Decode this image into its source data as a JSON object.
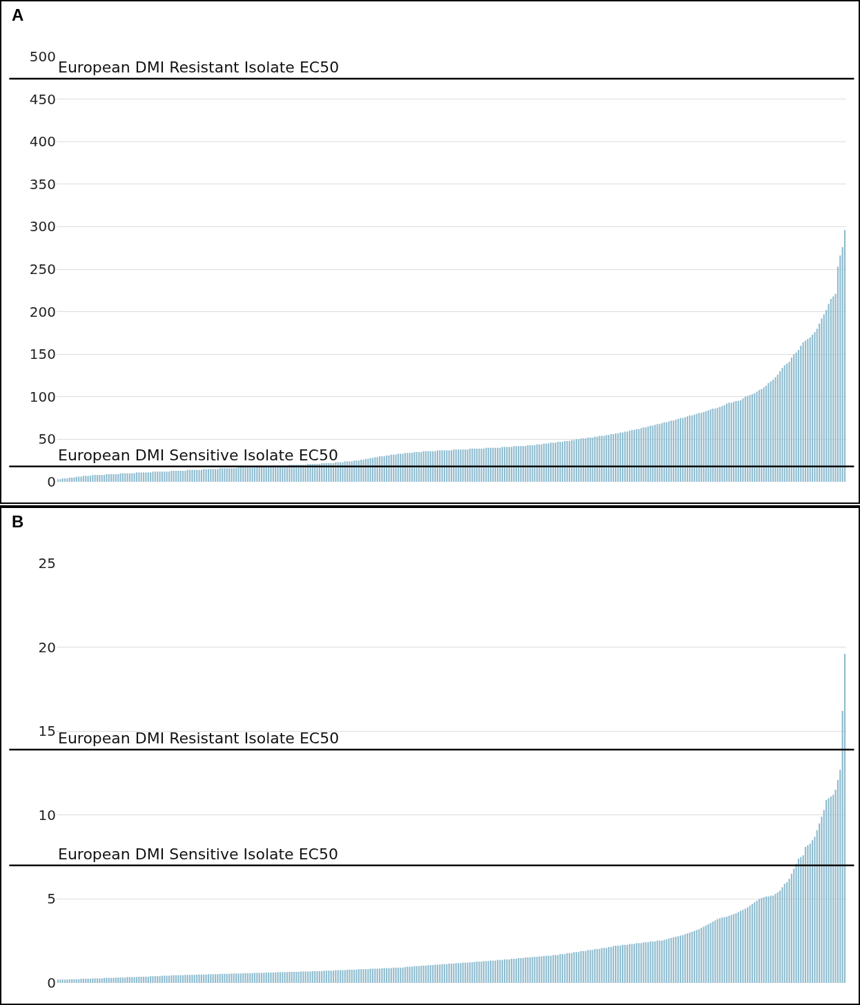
{
  "chart_data": [
    {
      "type": "bar",
      "title": "A",
      "categories": [
        null,
        null,
        null,
        null,
        null,
        null,
        null,
        null,
        null,
        null,
        null,
        null,
        null,
        null,
        null,
        null,
        null,
        null,
        null,
        null,
        null,
        null,
        null,
        null,
        null,
        null,
        null,
        null,
        null,
        null,
        null,
        null,
        null,
        null,
        null,
        null,
        null,
        null,
        null,
        null,
        null,
        null,
        null,
        null,
        null,
        null,
        null,
        null,
        null,
        null,
        null,
        null,
        null,
        null,
        null,
        null,
        null,
        null,
        null,
        null,
        null,
        null,
        null,
        null,
        null,
        null,
        null,
        null,
        null,
        null,
        null,
        null,
        null,
        null,
        null,
        null,
        null,
        null,
        null,
        null,
        null,
        null,
        null,
        null,
        null,
        null,
        null,
        null,
        null,
        null,
        null,
        null,
        null,
        null,
        null,
        null,
        null,
        null,
        null,
        null,
        null,
        null,
        null,
        null,
        null,
        null,
        null,
        null,
        null,
        null,
        null,
        null,
        null,
        null,
        null,
        null,
        null,
        null,
        null,
        null,
        null,
        null,
        null,
        null,
        null,
        null,
        null,
        null,
        null,
        null,
        null,
        null,
        null,
        null,
        null,
        null,
        null,
        null,
        null,
        null,
        null,
        null,
        null,
        null,
        null,
        null,
        null,
        null,
        null,
        null,
        null,
        null,
        null,
        null,
        null,
        null,
        null,
        null,
        null,
        null,
        null,
        null,
        null,
        null,
        null,
        null,
        null,
        null,
        null,
        null,
        null,
        null,
        null,
        null,
        null,
        null,
        null,
        null,
        null,
        null,
        null,
        null,
        null,
        null,
        null,
        null,
        null,
        null,
        null,
        null,
        null,
        null,
        null,
        null,
        null,
        null,
        null,
        null,
        null,
        null,
        null,
        null,
        null,
        null,
        null,
        null,
        null,
        null,
        null,
        null,
        null,
        null,
        null,
        null,
        null,
        null,
        null,
        null,
        null,
        null,
        null,
        null,
        null,
        null,
        null,
        null,
        null,
        null,
        null,
        null,
        null,
        null,
        null,
        null,
        null,
        null,
        null,
        null,
        null,
        null,
        null,
        null,
        null,
        null,
        null,
        null,
        null,
        null,
        null,
        null,
        null,
        null,
        null,
        null,
        null,
        null,
        null,
        null,
        null,
        null,
        null,
        null,
        null,
        null,
        null,
        null,
        null,
        null,
        null,
        null,
        null,
        null,
        null,
        null,
        null,
        null,
        null,
        null,
        null,
        null,
        null,
        null,
        null,
        null,
        null,
        null,
        null,
        null,
        null,
        null,
        null,
        null,
        null,
        null,
        null,
        null,
        null,
        null,
        null,
        null,
        null,
        null,
        null,
        null,
        null,
        null,
        null,
        null,
        null,
        null,
        null,
        null,
        null,
        null,
        null,
        null,
        null,
        null,
        null,
        null,
        null,
        null,
        null,
        null,
        null,
        null,
        null,
        null,
        null,
        null,
        null,
        null,
        null,
        null,
        null,
        null,
        null,
        null,
        null,
        null,
        null
      ],
      "values": [
        3,
        3,
        4,
        4,
        4,
        5,
        5,
        5,
        6,
        6,
        6,
        7,
        7,
        7,
        7,
        8,
        8,
        8,
        8,
        8,
        8,
        9,
        9,
        9,
        9,
        9,
        9,
        10,
        10,
        10,
        10,
        10,
        10,
        10,
        11,
        11,
        11,
        11,
        11,
        11,
        11,
        12,
        12,
        12,
        12,
        12,
        12,
        12,
        12,
        13,
        13,
        13,
        13,
        13,
        13,
        13,
        14,
        14,
        14,
        14,
        14,
        14,
        14,
        15,
        15,
        15,
        15,
        15,
        15,
        15,
        16,
        16,
        16,
        16,
        16,
        16,
        16,
        16,
        17,
        17,
        17,
        17,
        17,
        17,
        17,
        18,
        18,
        18,
        18,
        18,
        18,
        18,
        18,
        19,
        19,
        19,
        19,
        19,
        19,
        19,
        20,
        20,
        20,
        20,
        20,
        20,
        20,
        20,
        21,
        21,
        21,
        21,
        21,
        21,
        22,
        22,
        22,
        22,
        22,
        22,
        23,
        23,
        23,
        23,
        24,
        24,
        24,
        24,
        25,
        25,
        25,
        26,
        26,
        27,
        27,
        28,
        28,
        29,
        29,
        30,
        30,
        30,
        31,
        31,
        32,
        32,
        32,
        33,
        33,
        33,
        34,
        34,
        34,
        34,
        35,
        35,
        35,
        35,
        36,
        36,
        36,
        36,
        36,
        36,
        37,
        37,
        37,
        37,
        37,
        37,
        37,
        38,
        38,
        38,
        38,
        38,
        38,
        38,
        39,
        39,
        39,
        39,
        39,
        39,
        39,
        40,
        40,
        40,
        40,
        40,
        40,
        40,
        41,
        41,
        41,
        41,
        41,
        42,
        42,
        42,
        42,
        42,
        42,
        43,
        43,
        43,
        43,
        44,
        44,
        44,
        45,
        45,
        45,
        46,
        46,
        46,
        47,
        47,
        47,
        48,
        48,
        48,
        49,
        49,
        50,
        50,
        51,
        51,
        51,
        52,
        52,
        52,
        53,
        53,
        54,
        54,
        54,
        55,
        55,
        56,
        56,
        57,
        57,
        58,
        58,
        59,
        59,
        60,
        61,
        61,
        62,
        62,
        63,
        64,
        64,
        65,
        66,
        66,
        67,
        68,
        68,
        69,
        70,
        70,
        71,
        72,
        72,
        73,
        74,
        75,
        75,
        76,
        77,
        78,
        78,
        79,
        80,
        81,
        81,
        82,
        83,
        84,
        85,
        86,
        86,
        87,
        88,
        89,
        90,
        92,
        93,
        93,
        94,
        95,
        95,
        96,
        98,
        100,
        101,
        102,
        103,
        104,
        106,
        108,
        109,
        111,
        113,
        116,
        118,
        120,
        123,
        126,
        130,
        134,
        137,
        139,
        141,
        146,
        150,
        152,
        155,
        160,
        164,
        166,
        168,
        170,
        173,
        176,
        180,
        186,
        192,
        197,
        202,
        209,
        215,
        218,
        221,
        253,
        266,
        276,
        296
      ],
      "color": "#8fbccf",
      "ylim": [
        0,
        500
      ],
      "yticks": [
        0,
        50,
        100,
        150,
        200,
        250,
        300,
        350,
        400,
        450,
        500
      ],
      "grid": "y",
      "ref_lines": [
        {
          "axis": "y",
          "value": 474,
          "label": "European DMI Resistant Isolate EC50",
          "color": "#000000"
        },
        {
          "axis": "y",
          "value": 18,
          "label": "European DMI Sensitive Isolate EC50",
          "color": "#000000"
        }
      ]
    },
    {
      "type": "bar",
      "title": "B",
      "categories": [
        null,
        null,
        null,
        null,
        null,
        null,
        null,
        null,
        null,
        null,
        null,
        null,
        null,
        null,
        null,
        null,
        null,
        null,
        null,
        null,
        null,
        null,
        null,
        null,
        null,
        null,
        null,
        null,
        null,
        null,
        null,
        null,
        null,
        null,
        null,
        null,
        null,
        null,
        null,
        null,
        null,
        null,
        null,
        null,
        null,
        null,
        null,
        null,
        null,
        null,
        null,
        null,
        null,
        null,
        null,
        null,
        null,
        null,
        null,
        null,
        null,
        null,
        null,
        null,
        null,
        null,
        null,
        null,
        null,
        null,
        null,
        null,
        null,
        null,
        null,
        null,
        null,
        null,
        null,
        null,
        null,
        null,
        null,
        null,
        null,
        null,
        null,
        null,
        null,
        null,
        null,
        null,
        null,
        null,
        null,
        null,
        null,
        null,
        null,
        null,
        null,
        null,
        null,
        null,
        null,
        null,
        null,
        null,
        null,
        null,
        null,
        null,
        null,
        null,
        null,
        null,
        null,
        null,
        null,
        null,
        null,
        null,
        null,
        null,
        null,
        null,
        null,
        null,
        null,
        null,
        null,
        null,
        null,
        null,
        null,
        null,
        null,
        null,
        null,
        null,
        null,
        null,
        null,
        null,
        null,
        null,
        null,
        null,
        null,
        null,
        null,
        null,
        null,
        null,
        null,
        null,
        null,
        null,
        null,
        null,
        null,
        null,
        null,
        null,
        null,
        null,
        null,
        null,
        null,
        null,
        null,
        null,
        null,
        null,
        null,
        null,
        null,
        null,
        null,
        null,
        null,
        null,
        null,
        null,
        null,
        null,
        null,
        null,
        null,
        null,
        null,
        null,
        null,
        null,
        null,
        null,
        null,
        null,
        null,
        null,
        null,
        null,
        null,
        null,
        null,
        null,
        null,
        null,
        null,
        null,
        null,
        null,
        null,
        null,
        null,
        null,
        null,
        null,
        null,
        null,
        null,
        null,
        null,
        null,
        null,
        null,
        null,
        null,
        null,
        null,
        null,
        null,
        null,
        null,
        null,
        null,
        null,
        null,
        null,
        null,
        null,
        null,
        null,
        null,
        null,
        null,
        null,
        null,
        null,
        null,
        null,
        null,
        null,
        null,
        null,
        null,
        null,
        null,
        null,
        null,
        null,
        null,
        null,
        null,
        null,
        null,
        null,
        null,
        null,
        null,
        null,
        null,
        null,
        null,
        null,
        null,
        null,
        null,
        null,
        null,
        null,
        null,
        null,
        null,
        null,
        null,
        null,
        null,
        null,
        null,
        null,
        null,
        null,
        null,
        null,
        null,
        null,
        null,
        null,
        null,
        null,
        null,
        null,
        null,
        null,
        null,
        null,
        null,
        null,
        null,
        null,
        null,
        null,
        null,
        null,
        null,
        null,
        null,
        null,
        null,
        null,
        null,
        null,
        null,
        null,
        null,
        null,
        null,
        null,
        null,
        null,
        null,
        null,
        null,
        null,
        null,
        null,
        null,
        null,
        null,
        null
      ],
      "values": [
        0.2,
        0.2,
        0.2,
        0.2,
        0.2,
        0.22,
        0.22,
        0.22,
        0.22,
        0.22,
        0.25,
        0.25,
        0.25,
        0.25,
        0.25,
        0.27,
        0.27,
        0.27,
        0.27,
        0.27,
        0.3,
        0.3,
        0.3,
        0.3,
        0.3,
        0.32,
        0.32,
        0.32,
        0.32,
        0.32,
        0.35,
        0.35,
        0.35,
        0.35,
        0.35,
        0.37,
        0.37,
        0.37,
        0.37,
        0.37,
        0.4,
        0.4,
        0.4,
        0.4,
        0.4,
        0.43,
        0.43,
        0.43,
        0.43,
        0.45,
        0.46,
        0.46,
        0.46,
        0.46,
        0.46,
        0.48,
        0.48,
        0.48,
        0.48,
        0.48,
        0.5,
        0.5,
        0.5,
        0.5,
        0.5,
        0.52,
        0.52,
        0.52,
        0.52,
        0.52,
        0.54,
        0.54,
        0.54,
        0.54,
        0.54,
        0.56,
        0.56,
        0.56,
        0.56,
        0.56,
        0.58,
        0.58,
        0.58,
        0.58,
        0.58,
        0.6,
        0.6,
        0.6,
        0.6,
        0.6,
        0.62,
        0.62,
        0.62,
        0.62,
        0.62,
        0.64,
        0.64,
        0.64,
        0.64,
        0.65,
        0.66,
        0.66,
        0.66,
        0.66,
        0.66,
        0.68,
        0.68,
        0.68,
        0.68,
        0.68,
        0.7,
        0.7,
        0.7,
        0.7,
        0.7,
        0.73,
        0.73,
        0.73,
        0.73,
        0.73,
        0.76,
        0.76,
        0.76,
        0.76,
        0.76,
        0.79,
        0.79,
        0.79,
        0.79,
        0.79,
        0.82,
        0.82,
        0.82,
        0.82,
        0.82,
        0.85,
        0.85,
        0.85,
        0.85,
        0.85,
        0.88,
        0.88,
        0.88,
        0.88,
        0.88,
        0.91,
        0.91,
        0.91,
        0.91,
        0.91,
        0.95,
        0.97,
        0.97,
        0.97,
        1.0,
        1.0,
        1.0,
        1.03,
        1.03,
        1.03,
        1.06,
        1.06,
        1.06,
        1.09,
        1.09,
        1.09,
        1.12,
        1.12,
        1.12,
        1.15,
        1.15,
        1.15,
        1.18,
        1.18,
        1.18,
        1.21,
        1.21,
        1.21,
        1.23,
        1.23,
        1.25,
        1.27,
        1.27,
        1.27,
        1.3,
        1.3,
        1.3,
        1.33,
        1.33,
        1.33,
        1.37,
        1.37,
        1.37,
        1.4,
        1.4,
        1.4,
        1.44,
        1.44,
        1.44,
        1.48,
        1.48,
        1.48,
        1.52,
        1.52,
        1.52,
        1.55,
        1.55,
        1.55,
        1.58,
        1.58,
        1.6,
        1.62,
        1.62,
        1.62,
        1.66,
        1.66,
        1.66,
        1.72,
        1.72,
        1.72,
        1.78,
        1.78,
        1.78,
        1.84,
        1.84,
        1.84,
        1.9,
        1.9,
        1.9,
        1.96,
        1.96,
        1.96,
        2.02,
        2.02,
        2.02,
        2.08,
        2.08,
        2.08,
        2.14,
        2.14,
        2.2,
        2.22,
        2.22,
        2.22,
        2.27,
        2.27,
        2.27,
        2.32,
        2.32,
        2.32,
        2.37,
        2.37,
        2.37,
        2.42,
        2.42,
        2.42,
        2.47,
        2.47,
        2.47,
        2.52,
        2.52,
        2.52,
        2.57,
        2.6,
        2.65,
        2.68,
        2.72,
        2.75,
        2.78,
        2.82,
        2.85,
        2.9,
        2.95,
        3.0,
        3.05,
        3.1,
        3.15,
        3.2,
        3.28,
        3.35,
        3.42,
        3.5,
        3.57,
        3.65,
        3.72,
        3.8,
        3.85,
        3.9,
        3.92,
        3.95,
        4.0,
        4.05,
        4.1,
        4.15,
        4.22,
        4.3,
        4.35,
        4.42,
        4.5,
        4.6,
        4.7,
        4.8,
        4.9,
        5.0,
        5.05,
        5.1,
        5.15,
        5.15,
        5.2,
        5.2,
        5.3,
        5.4,
        5.5,
        5.7,
        5.9,
        6.0,
        6.2,
        6.5,
        6.8,
        7.1,
        7.4,
        7.5,
        7.6,
        8.1,
        8.2,
        8.3,
        8.5,
        8.7,
        9.1,
        9.5,
        9.9,
        10.3,
        10.9,
        11.0,
        11.1,
        11.2,
        11.5,
        12.1,
        12.7,
        16.2,
        19.6
      ],
      "color": "#8fbccf",
      "ylim": [
        0,
        25
      ],
      "yticks": [
        0,
        5,
        10,
        15,
        20,
        25
      ],
      "grid": "y",
      "ref_lines": [
        {
          "axis": "y",
          "value": 13.9,
          "label": "European DMI Resistant Isolate EC50",
          "color": "#000000"
        },
        {
          "axis": "y",
          "value": 7,
          "label": "European DMI Sensitive Isolate EC50",
          "color": "#000000"
        }
      ]
    }
  ]
}
